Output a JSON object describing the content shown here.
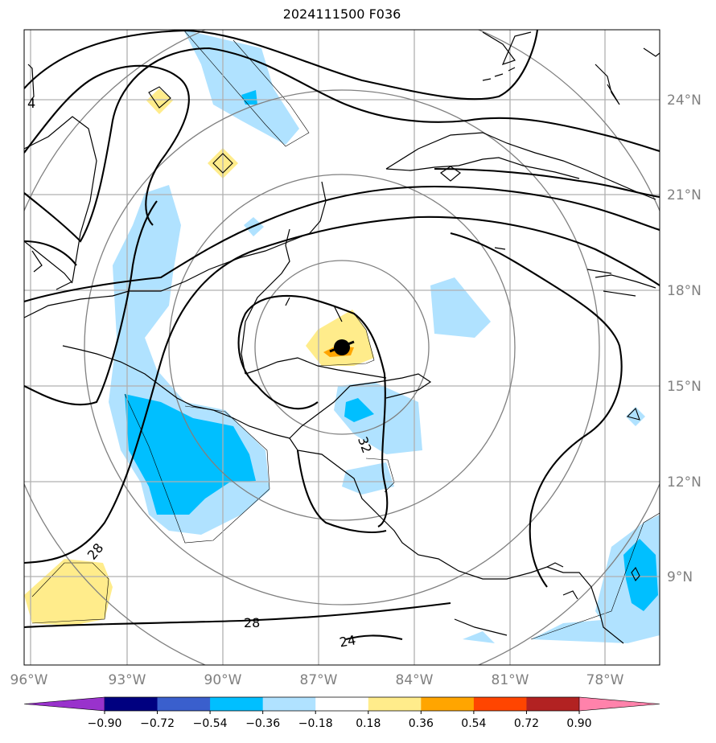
{
  "title": "2024111500 F036",
  "map": {
    "lon_labels": [
      "96°W",
      "93°W",
      "90°W",
      "87°W",
      "84°W",
      "81°W",
      "78°W"
    ],
    "lat_labels": [
      "24°N",
      "21°N",
      "18°N",
      "15°N",
      "12°N",
      "9°N"
    ],
    "contour_labels": [
      "4",
      "28",
      "28",
      "32",
      "24"
    ],
    "storm_marker": {
      "lon": -85.8,
      "lat": 16.1
    }
  },
  "colorbar": {
    "ticks": [
      "−0.90",
      "−0.72",
      "−0.54",
      "−0.36",
      "−0.18",
      "0.18",
      "0.36",
      "0.54",
      "0.72",
      "0.90"
    ],
    "colors": [
      "#9932cc",
      "#000080",
      "#3a5fcd",
      "#00bfff",
      "#b0e2ff",
      "#ffffff",
      "#ffec8b",
      "#ffa500",
      "#ff4500",
      "#b22222",
      "#ff82ab"
    ]
  },
  "colors": {
    "grid": "#b0b0b0",
    "tick_text": "#808080",
    "ring": "#808080"
  }
}
